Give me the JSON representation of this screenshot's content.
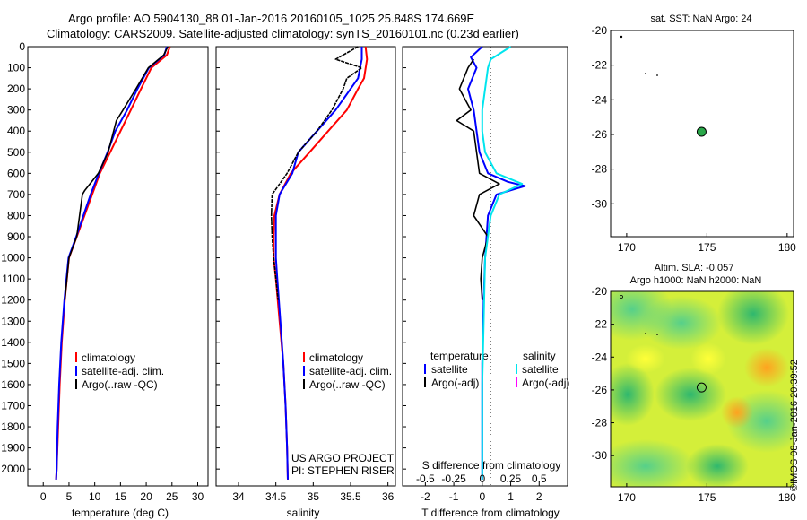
{
  "header": {
    "line1": "Argo profile: AO 5904130_88 01-Jan-2016 20160105_1025 25.848S 174.669E",
    "line2": "Climatology: CARS2009. Satellite-adjusted climatology: synTS_20160101.nc (0.23d earlier)"
  },
  "credit": "©IMOS 08-Jan-2016 20:39:52",
  "colors": {
    "climatology": "#ff0000",
    "satellite": "#0000ff",
    "argo": "#000000",
    "sat_salinity": "#00e5ee",
    "argo_adj_salinity": "#ff00ff"
  },
  "chart_data": [
    {
      "type": "line",
      "id": "temperature",
      "xlabel": "temperature (deg C)",
      "ylabel": "",
      "xlim": [
        -3,
        32
      ],
      "ylim": [
        2080,
        0
      ],
      "xticks": [
        "0",
        "5",
        "10",
        "15",
        "20",
        "25",
        "30"
      ],
      "yticks": [
        "0",
        "100",
        "200",
        "300",
        "400",
        "500",
        "600",
        "700",
        "800",
        "900",
        "1000",
        "1100",
        "1200",
        "1300",
        "1400",
        "1500",
        "1600",
        "1700",
        "1800",
        "1900",
        "2000"
      ],
      "legend": [
        "climatology",
        "satellite-adj. clim.",
        "Argo(..raw -QC)"
      ],
      "legend_placement": "lower-right",
      "series": [
        {
          "name": "climatology",
          "color": "red",
          "x": [
            24.6,
            24,
            21,
            19,
            17,
            15,
            13,
            11,
            9.5,
            8,
            6.5,
            5,
            4.2,
            3.6,
            3.2,
            2.9,
            2.6,
            2.5
          ],
          "y": [
            0,
            40,
            100,
            200,
            300,
            400,
            500,
            600,
            700,
            800,
            900,
            1000,
            1200,
            1400,
            1600,
            1800,
            2000,
            2050
          ]
        },
        {
          "name": "satellite-adj. clim.",
          "color": "blue",
          "x": [
            24,
            23.5,
            20.5,
            18.3,
            16.3,
            14,
            12.5,
            10.8,
            9.2,
            7.8,
            6.4,
            4.9,
            4.1,
            3.5,
            3.1,
            2.8,
            2.6,
            2.5
          ],
          "y": [
            0,
            40,
            100,
            200,
            300,
            400,
            500,
            600,
            700,
            800,
            900,
            1000,
            1200,
            1400,
            1600,
            1800,
            2000,
            2050
          ]
        },
        {
          "name": "Argo(..raw -QC)",
          "color": "black",
          "x": [
            24.2,
            23.4,
            20.4,
            18,
            15.5,
            14.2,
            12.6,
            10.7,
            8.1,
            7.6,
            6.5,
            5.0,
            4.2
          ],
          "y": [
            0,
            40,
            100,
            200,
            300,
            350,
            500,
            600,
            680,
            700,
            900,
            1000,
            1200
          ]
        }
      ]
    },
    {
      "type": "line",
      "id": "salinity",
      "xlabel": "salinity",
      "xlim": [
        33.7,
        36.1
      ],
      "ylim": [
        2080,
        0
      ],
      "xticks": [
        "34",
        "34.5",
        "35",
        "35.5",
        "36"
      ],
      "legend": [
        "climatology",
        "satellite-adj. clim.",
        "Argo(..raw -QC)"
      ],
      "legend_placement": "lower-right",
      "annotations": [
        "US ARGO PROJECT",
        "PI: STEPHEN RISER"
      ],
      "series": [
        {
          "name": "climatology",
          "color": "red",
          "x": [
            35.7,
            35.72,
            35.68,
            35.6,
            35.45,
            35.2,
            34.95,
            34.7,
            34.55,
            34.48,
            34.47,
            34.47,
            34.5,
            34.55,
            34.6,
            34.63,
            34.65,
            34.66
          ],
          "y": [
            0,
            60,
            150,
            200,
            300,
            400,
            500,
            600,
            700,
            800,
            900,
            1000,
            1100,
            1300,
            1500,
            1700,
            1900,
            2050
          ]
        },
        {
          "name": "satellite-adj. clim.",
          "color": "blue",
          "x": [
            35.65,
            35.65,
            35.6,
            35.5,
            35.3,
            35.05,
            34.8,
            34.72,
            34.55,
            34.5,
            34.5,
            34.5,
            34.52,
            34.56,
            34.6,
            34.63,
            34.65,
            34.66
          ],
          "y": [
            0,
            60,
            150,
            200,
            300,
            400,
            500,
            600,
            700,
            800,
            900,
            1000,
            1100,
            1300,
            1500,
            1700,
            1900,
            2050
          ]
        },
        {
          "name": "Argo(..raw -QC)",
          "color": "black",
          "x": [
            35.6,
            35.3,
            35.65,
            35.45,
            35.4,
            35.25,
            35.05,
            34.8,
            34.65,
            34.45,
            34.44,
            34.45,
            34.47,
            34.5,
            34.53
          ],
          "y": [
            0,
            60,
            100,
            150,
            200,
            300,
            400,
            500,
            600,
            700,
            800,
            900,
            1000,
            1100,
            1200
          ]
        }
      ]
    },
    {
      "type": "line",
      "id": "difference",
      "xlabel": "T difference from climatology",
      "xlabel_top": "S difference from climatology",
      "xlim": [
        -2.8,
        3.0
      ],
      "ylim": [
        2080,
        0
      ],
      "xticks": [
        "-2",
        "-1",
        "0",
        "1",
        "2"
      ],
      "xticks_top": [
        "-0.5",
        "-0.25",
        "0",
        "0.25",
        "0.5"
      ],
      "legend_titles": [
        "temperature",
        "salinity"
      ],
      "legend": [
        "satellite",
        "Argo(-adj)",
        "satellite",
        "Argo(-adj)"
      ],
      "legend_placement": "lower-middle",
      "series": [
        {
          "name": "satellite",
          "group": "temperature",
          "color": "blue",
          "x": [
            0,
            -0.4,
            -0.2,
            -0.5,
            -0.3,
            -0.2,
            -0.1,
            0.2,
            0.9,
            1.5,
            0.5,
            0.2,
            0.1,
            0.05,
            0,
            0,
            0
          ],
          "y": [
            0,
            50,
            100,
            200,
            300,
            400,
            500,
            600,
            640,
            660,
            700,
            800,
            1000,
            1200,
            1500,
            1800,
            2050
          ]
        },
        {
          "name": "Argo(-adj)",
          "group": "temperature",
          "color": "black",
          "x": [
            -0.3,
            -0.5,
            -0.8,
            -0.4,
            -0.9,
            -0.3,
            -0.2,
            -0.1,
            0.6,
            -0.1,
            -0.3,
            0.2,
            0,
            -0.05,
            0
          ],
          "y": [
            60,
            100,
            200,
            300,
            350,
            400,
            500,
            600,
            650,
            700,
            800,
            900,
            1000,
            1100,
            1200
          ]
        },
        {
          "name": "satellite",
          "group": "salinity",
          "color": "cyan",
          "x": [
            1.0,
            0.3,
            0.2,
            0.1,
            0.0,
            0.0,
            0.1,
            0.5,
            1.4,
            0.6,
            0.3,
            0.1,
            0.05,
            0,
            0
          ],
          "y": [
            0,
            60,
            100,
            200,
            300,
            400,
            500,
            600,
            650,
            700,
            800,
            1000,
            1300,
            1600,
            2050
          ]
        }
      ]
    },
    {
      "type": "scatter",
      "id": "sst_map",
      "title": "sat. SST: NaN Argo: 24",
      "xlim": [
        169,
        180.4
      ],
      "ylim": [
        -20,
        -31.9
      ],
      "xticks": [
        "170",
        "175",
        "180"
      ],
      "yticks": [
        "-20",
        "-22",
        "-24",
        "-26",
        "-28",
        "-30"
      ],
      "points": [
        {
          "x": 174.669,
          "y": -25.848
        }
      ]
    },
    {
      "type": "heatmap",
      "id": "sla_map",
      "title_line1": "Altim. SLA: -0.057",
      "title_line2": "Argo h1000: NaN h2000: NaN",
      "xlim": [
        169,
        180.4
      ],
      "ylim": [
        -20,
        -31.9
      ],
      "xticks": [
        "170",
        "175",
        "180"
      ],
      "yticks": [
        "-20",
        "-22",
        "-24",
        "-26",
        "-28",
        "-30"
      ],
      "points": [
        {
          "x": 174.669,
          "y": -25.848
        }
      ]
    }
  ]
}
